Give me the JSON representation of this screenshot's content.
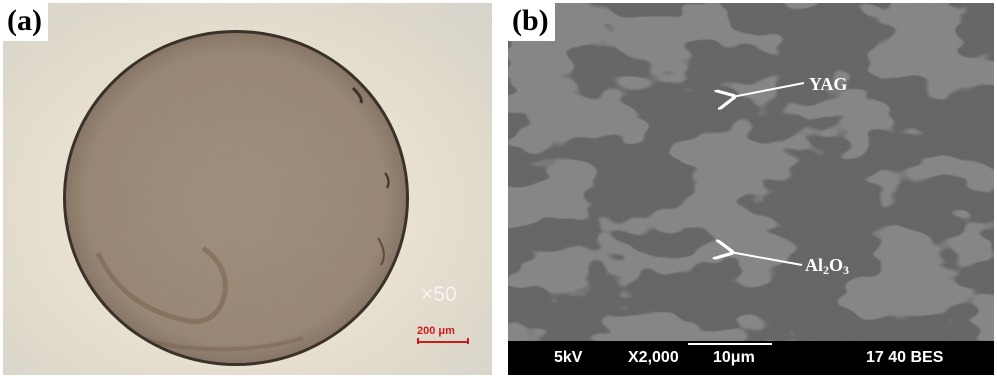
{
  "panel_a": {
    "label": "(a)",
    "magnification": "×50",
    "scale_bar": "200 μm"
  },
  "panel_b": {
    "label": "(b)",
    "annotations": {
      "yag": "YAG",
      "al2o3": {
        "base": "Al",
        "sub1": "2",
        "mid": "O",
        "sub2": "3"
      }
    },
    "info_bar": {
      "voltage": "5kV",
      "magnification": "X2,000",
      "scale": "10μm",
      "id": "17 40 BES"
    }
  },
  "colors": {
    "sample_fill": "#9c8a79",
    "sem_matrix": "#5c5c5c",
    "sem_dark_phase": "#393939",
    "scale_red": "#cc1c1c"
  }
}
